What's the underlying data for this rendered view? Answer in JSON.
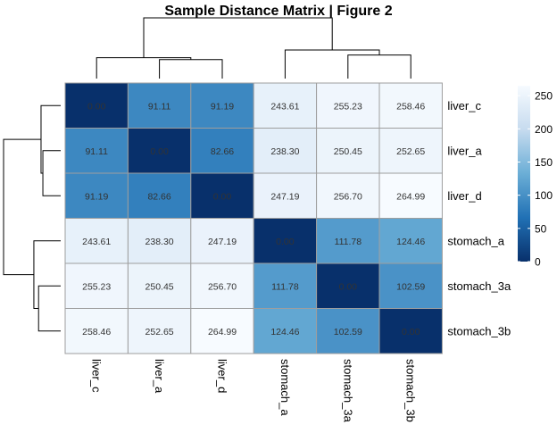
{
  "chart_data": {
    "type": "heatmap",
    "title": "Sample Distance Matrix | Figure 2",
    "rows": [
      "liver_c",
      "liver_a",
      "liver_d",
      "stomach_a",
      "stomach_3a",
      "stomach_3b"
    ],
    "columns": [
      "liver_c",
      "liver_a",
      "liver_d",
      "stomach_a",
      "stomach_3a",
      "stomach_3b"
    ],
    "values": [
      [
        0.0,
        91.11,
        91.19,
        243.61,
        255.23,
        258.46
      ],
      [
        91.11,
        0.0,
        82.66,
        238.3,
        250.45,
        252.65
      ],
      [
        91.19,
        82.66,
        0.0,
        247.19,
        256.7,
        264.99
      ],
      [
        243.61,
        238.3,
        247.19,
        0.0,
        111.78,
        124.46
      ],
      [
        255.23,
        250.45,
        256.7,
        111.78,
        0.0,
        102.59
      ],
      [
        258.46,
        252.65,
        264.99,
        124.46,
        102.59,
        0.0
      ]
    ],
    "cell_labels": [
      [
        "0.00",
        "91.11",
        "91.19",
        "243.61",
        "255.23",
        "258.46"
      ],
      [
        "91.11",
        "0.00",
        "82.66",
        "238.30",
        "250.45",
        "252.65"
      ],
      [
        "91.19",
        "82.66",
        "0.00",
        "247.19",
        "256.70",
        "264.99"
      ],
      [
        "243.61",
        "238.30",
        "247.19",
        "0.00",
        "111.78",
        "124.46"
      ],
      [
        "255.23",
        "250.45",
        "256.70",
        "111.78",
        "0.00",
        "102.59"
      ],
      [
        "258.46",
        "252.65",
        "264.99",
        "124.46",
        "102.59",
        "0.00"
      ]
    ],
    "colorbar": {
      "range": [
        0,
        265
      ],
      "ticks": [
        0,
        50,
        100,
        150,
        200,
        250
      ],
      "tick_labels": [
        "0",
        "50",
        "100",
        "150",
        "200",
        "250"
      ],
      "colors": [
        "#08306b",
        "#2171b5",
        "#6baed6",
        "#c6dbef",
        "#f7fbff"
      ]
    },
    "dendrogram": {
      "merges": [
        {
          "left": "liver_a",
          "right": "liver_d",
          "height": 82.66
        },
        {
          "left": "liver_c",
          "right": [
            "liver_a",
            "liver_d"
          ],
          "height": 91.19
        },
        {
          "left": "stomach_3a",
          "right": "stomach_3b",
          "height": 102.59
        },
        {
          "left": "stomach_a",
          "right": [
            "stomach_3a",
            "stomach_3b"
          ],
          "height": 124.46
        },
        {
          "left": [
            "liver_c",
            "liver_a",
            "liver_d"
          ],
          "right": [
            "stomach_a",
            "stomach_3a",
            "stomach_3b"
          ],
          "height": 264.99
        }
      ]
    }
  }
}
